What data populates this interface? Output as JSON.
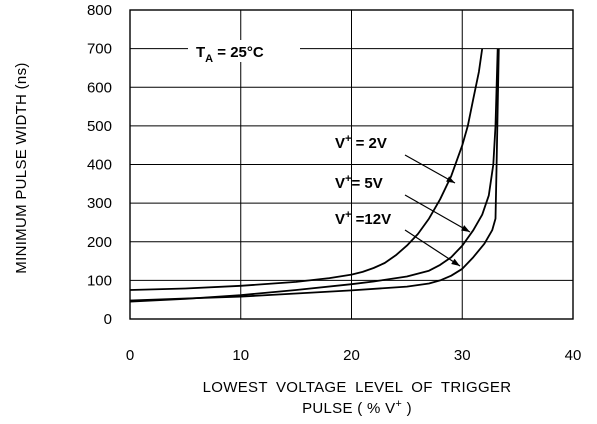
{
  "chart_data": {
    "type": "line",
    "title": "",
    "xlabel_line1": "LOWEST VOLTAGE LEVEL OF TRIGGER",
    "xlabel_line2_prefix": "PULSE ( % V",
    "xlabel_line2_sup": "+",
    "xlabel_line2_suffix": " )",
    "ylabel": "MINIMUM PULSE WIDTH (ns)",
    "xlim": [
      0,
      40
    ],
    "ylim": [
      0,
      800
    ],
    "xticks": [
      "0",
      "10",
      "20",
      "30",
      "40"
    ],
    "yticks": [
      "0",
      "100",
      "200",
      "300",
      "400",
      "500",
      "600",
      "700",
      "800"
    ],
    "grid": true,
    "series": [
      {
        "name": "V+ = 2V",
        "label": {
          "main": "V",
          "sup": "+",
          "rest": " = 2V"
        },
        "points": [
          [
            0,
            75
          ],
          [
            5,
            79
          ],
          [
            10,
            86
          ],
          [
            15,
            96
          ],
          [
            18,
            106
          ],
          [
            20,
            115
          ],
          [
            21,
            122
          ],
          [
            22,
            132
          ],
          [
            23,
            145
          ],
          [
            24,
            165
          ],
          [
            25,
            190
          ],
          [
            26,
            220
          ],
          [
            27,
            260
          ],
          [
            28,
            310
          ],
          [
            29,
            370
          ],
          [
            30,
            450
          ],
          [
            30.5,
            500
          ],
          [
            31,
            570
          ],
          [
            31.5,
            640
          ],
          [
            31.8,
            700
          ]
        ]
      },
      {
        "name": "V+ = 5V",
        "label": {
          "main": "V",
          "sup": "+",
          "rest": "= 5V"
        },
        "points": [
          [
            0,
            45
          ],
          [
            5,
            52
          ],
          [
            10,
            62
          ],
          [
            15,
            75
          ],
          [
            20,
            90
          ],
          [
            22,
            97
          ],
          [
            25,
            110
          ],
          [
            27,
            125
          ],
          [
            28,
            140
          ],
          [
            29,
            160
          ],
          [
            30,
            190
          ],
          [
            31,
            230
          ],
          [
            31.8,
            270
          ],
          [
            32.4,
            320
          ],
          [
            32.8,
            400
          ],
          [
            33.0,
            500
          ],
          [
            33.1,
            600
          ],
          [
            33.2,
            700
          ]
        ]
      },
      {
        "name": "V+ =12V",
        "label": {
          "main": "V",
          "sup": "+",
          "rest": " =12V"
        },
        "points": [
          [
            0,
            48
          ],
          [
            5,
            53
          ],
          [
            10,
            58
          ],
          [
            15,
            66
          ],
          [
            20,
            74
          ],
          [
            25,
            84
          ],
          [
            27,
            92
          ],
          [
            28,
            100
          ],
          [
            29,
            112
          ],
          [
            30,
            130
          ],
          [
            31,
            160
          ],
          [
            32,
            195
          ],
          [
            32.7,
            230
          ],
          [
            33.0,
            260
          ],
          [
            33.1,
            400
          ],
          [
            33.2,
            550
          ],
          [
            33.3,
            700
          ]
        ]
      }
    ],
    "annotations": [
      {
        "main": "T",
        "sub": "A",
        "rest": " = 25°C"
      }
    ]
  }
}
